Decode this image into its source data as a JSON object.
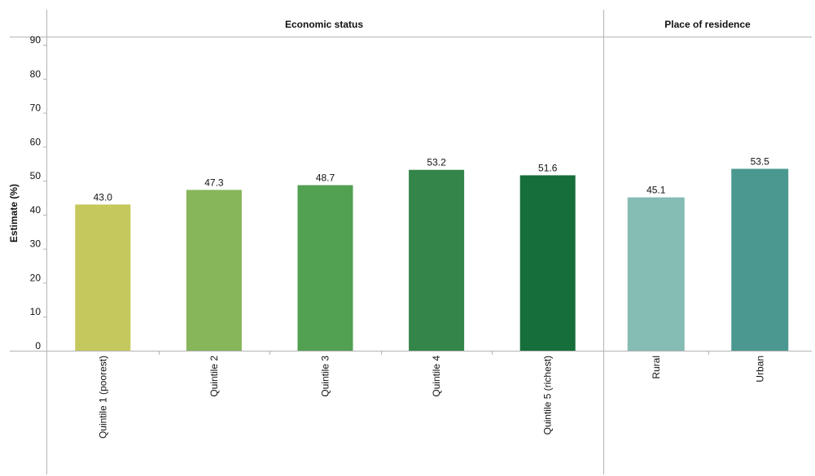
{
  "chart_data": {
    "type": "bar",
    "ylabel": "Estimate (%)",
    "ylim": [
      0,
      90
    ],
    "yticks": [
      0,
      10,
      20,
      30,
      40,
      50,
      60,
      70,
      80,
      90
    ],
    "grid": false,
    "panels": [
      {
        "title": "Economic status",
        "categories": [
          "Quintile 1 (poorest)",
          "Quintile 2",
          "Quintile 3",
          "Quintile 4",
          "Quintile 5 (richest)"
        ],
        "values": [
          43.0,
          47.3,
          48.7,
          53.2,
          51.6
        ],
        "labels": [
          "43.0",
          "47.3",
          "48.7",
          "53.2",
          "51.6"
        ],
        "colors": [
          "#c5c85c",
          "#86b55a",
          "#52a052",
          "#33854a",
          "#166e3a"
        ]
      },
      {
        "title": "Place of residence",
        "categories": [
          "Rural",
          "Urban"
        ],
        "values": [
          45.1,
          53.5
        ],
        "labels": [
          "45.1",
          "53.5"
        ],
        "colors": [
          "#85bcb4",
          "#4a9890"
        ]
      }
    ]
  }
}
